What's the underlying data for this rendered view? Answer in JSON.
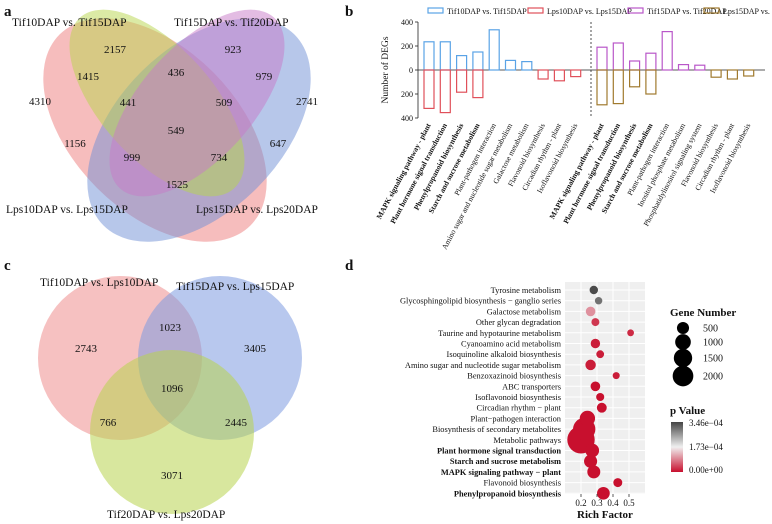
{
  "chart_data": [
    {
      "panel": "a",
      "type": "venn",
      "sets": [
        "Tif10DAP vs. Tif15DAP",
        "Tif15DAP vs. Tif20DAP",
        "Lps10DAP vs. Lps15DAP",
        "Lps15DAP vs. Lps20DAP"
      ],
      "regions": [
        {
          "id": "A",
          "value": 2157
        },
        {
          "id": "B",
          "value": 923
        },
        {
          "id": "C",
          "value": 4310
        },
        {
          "id": "D",
          "value": 2741
        },
        {
          "id": "AB",
          "value": 436
        },
        {
          "id": "AC",
          "value": 1415
        },
        {
          "id": "BD",
          "value": 979
        },
        {
          "id": "CD",
          "value": 1525
        },
        {
          "id": "ABC",
          "value": 441
        },
        {
          "id": "ABD",
          "value": 509
        },
        {
          "id": "ABCD",
          "value": 549
        },
        {
          "id": "BC",
          "value": 1156
        },
        {
          "id": "AD",
          "value": 647
        },
        {
          "id": "BCD",
          "value": 999
        },
        {
          "id": "ACD",
          "value": 734
        }
      ]
    },
    {
      "panel": "b",
      "type": "bar",
      "ylabel": "Number of DEGs",
      "ylim": [
        -400,
        400
      ],
      "yticks": [
        "400",
        "200",
        "0",
        "200",
        "400"
      ],
      "legend": [
        "Tif10DAP vs. Tif15DAP",
        "Lps10DAP vs. Lps15DAP",
        "Tif15DAP vs. Tif20DAP",
        "Lps15DAP vs. Lps20DAP"
      ],
      "colors": [
        "#5aa3e6",
        "#e0505a",
        "#b957c9",
        "#a07a2e"
      ],
      "groups": [
        {
          "categories": [
            "MAPK signaling pathway - plant",
            "Plant hormone signal transduction",
            "Phenylpropanoid biosynthesis",
            "Starch and sucrose metabolism",
            "Plant-pathogen interaction",
            "Amino sugar and nucleotide sugar metabolism",
            "Galactose metabolism",
            "Flavonoid biosynthesis",
            "Circadian rhythm - plant",
            "Isoflavonoid biosynthesis"
          ],
          "bold": [
            true,
            true,
            true,
            true,
            false,
            false,
            false,
            false,
            false,
            false
          ],
          "up": [
            235,
            235,
            120,
            150,
            335,
            80,
            70,
            0,
            0,
            0
          ],
          "down": [
            -320,
            -355,
            -185,
            -230,
            0,
            0,
            0,
            -75,
            -90,
            -55
          ]
        },
        {
          "categories": [
            "MAPK signaling pathway - plant",
            "Plant hormone signal transduction",
            "Phenylpropanoid biosynthesis",
            "Starch and sucrose metabolism",
            "Plant-pathogen interaction",
            "Inositol phosphate metabolism",
            "Phosphatidylinositol signaling system",
            "Flavonoid biosynthesis",
            "Circadian rhythm - plant",
            "Isoflavonoid biosynthesis"
          ],
          "bold": [
            true,
            true,
            true,
            true,
            false,
            false,
            false,
            false,
            false,
            false
          ],
          "up": [
            190,
            225,
            75,
            140,
            320,
            45,
            40,
            0,
            0,
            0
          ],
          "down": [
            -290,
            -280,
            -140,
            -200,
            0,
            0,
            0,
            -60,
            -75,
            -50
          ]
        }
      ]
    },
    {
      "panel": "c",
      "type": "venn",
      "sets": [
        "Tif10DAP vs. Lps10DAP",
        "Tif15DAP vs. Lps15DAP",
        "Tif20DAP vs. Lps20DAP"
      ],
      "regions": [
        {
          "id": "A",
          "value": 2743
        },
        {
          "id": "B",
          "value": 3405
        },
        {
          "id": "C",
          "value": 3071
        },
        {
          "id": "AB",
          "value": 1023
        },
        {
          "id": "AC",
          "value": 766
        },
        {
          "id": "BC",
          "value": 2445
        },
        {
          "id": "ABC",
          "value": 1096
        }
      ]
    },
    {
      "panel": "d",
      "type": "scatter",
      "xlabel": "Rich Factor",
      "xlim": [
        0.1,
        0.6
      ],
      "xticks": [
        0.2,
        0.3,
        0.4,
        0.5
      ],
      "xtick_labels": [
        "0.2",
        "0.3",
        "0.4",
        "0.5"
      ],
      "size_legend_title": "Gene Number",
      "size_legend": [
        "500",
        "1000",
        "1500",
        "2000"
      ],
      "color_legend_title": "p Value",
      "color_legend": [
        "3.46e−04",
        "1.73e−04",
        "0.00e+00"
      ],
      "points": [
        {
          "term": "Tyrosine metabolism",
          "x": 0.28,
          "genes": 70,
          "p": 0.00034,
          "bold": false
        },
        {
          "term": "Glycosphingolipid biosynthesis − ganglio series",
          "x": 0.31,
          "genes": 40,
          "p": 0.0003,
          "bold": false
        },
        {
          "term": "Galactose metabolism",
          "x": 0.26,
          "genes": 120,
          "p": 0.0001,
          "bold": false
        },
        {
          "term": "Other glycan degradation",
          "x": 0.29,
          "genes": 55,
          "p": 3e-05,
          "bold": false
        },
        {
          "term": "Taurine and hypotaurine metabolism",
          "x": 0.51,
          "genes": 25,
          "p": 2e-05,
          "bold": false
        },
        {
          "term": "Cyanoamino acid metabolism",
          "x": 0.29,
          "genes": 110,
          "p": 1e-05,
          "bold": false
        },
        {
          "term": "Isoquinoline alkaloid biosynthesis",
          "x": 0.32,
          "genes": 50,
          "p": 1e-05,
          "bold": false
        },
        {
          "term": "Amino sugar and nucleotide sugar metabolism",
          "x": 0.26,
          "genes": 160,
          "p": 1e-05,
          "bold": false
        },
        {
          "term": "Benzoxazinoid biosynthesis",
          "x": 0.42,
          "genes": 30,
          "p": 1e-05,
          "bold": false
        },
        {
          "term": "ABC transporters",
          "x": 0.29,
          "genes": 120,
          "p": 0.0,
          "bold": false
        },
        {
          "term": "Isoflavonoid biosynthesis",
          "x": 0.32,
          "genes": 60,
          "p": 0.0,
          "bold": false
        },
        {
          "term": "Circadian rhythm − plant",
          "x": 0.33,
          "genes": 130,
          "p": 0.0,
          "bold": false
        },
        {
          "term": "Plant−pathogen interaction",
          "x": 0.24,
          "genes": 520,
          "p": 0.0,
          "bold": false
        },
        {
          "term": "Biosynthesis of secondary metabolites",
          "x": 0.22,
          "genes": 1400,
          "p": 0.0,
          "bold": false
        },
        {
          "term": "Metabolic pathways",
          "x": 0.2,
          "genes": 2300,
          "p": 0.0,
          "bold": false
        },
        {
          "term": "Plant hormone signal transduction",
          "x": 0.27,
          "genes": 380,
          "p": 0.0,
          "bold": true
        },
        {
          "term": "Starch and sucrose metabolism",
          "x": 0.26,
          "genes": 330,
          "p": 0.0,
          "bold": true
        },
        {
          "term": "MAPK signaling pathway − plant",
          "x": 0.28,
          "genes": 320,
          "p": 0.0,
          "bold": true
        },
        {
          "term": "Flavonoid biosynthesis",
          "x": 0.43,
          "genes": 90,
          "p": 0.0,
          "bold": false
        },
        {
          "term": "Phenylpropanoid biosynthesis",
          "x": 0.34,
          "genes": 300,
          "p": 0.0,
          "bold": true
        }
      ]
    }
  ],
  "labels": {
    "panel_a": "a",
    "panel_b": "b",
    "panel_c": "c",
    "panel_d": "d"
  },
  "colors": {
    "venn_a": [
      "#8fbf3f",
      "#c879c8",
      "#ee7b7b",
      "#6f90d6"
    ],
    "venn_c": [
      "#ee8e8e",
      "#7d9be0",
      "#b8d44e"
    ],
    "pval_high": "#454545",
    "pval_mid": "#f2f2f2",
    "pval_low": "#c8102e"
  }
}
